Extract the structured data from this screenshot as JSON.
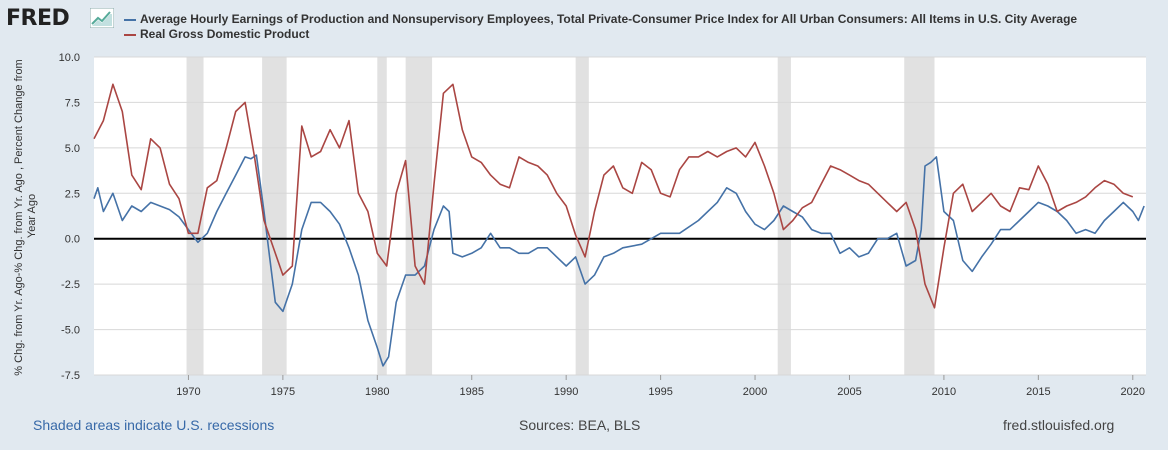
{
  "logo_text": "FRED",
  "chart_data": {
    "type": "line",
    "ylabel": "% Chg. from Yr. Ago-% Chg. from Yr. Ago , Percent Change from Year Ago",
    "xlabel": "",
    "ylim": [
      -7.5,
      10.0
    ],
    "xlim": [
      1965.0,
      2020.7
    ],
    "yticks": [
      "10.0",
      "7.5",
      "5.0",
      "2.5",
      "0.0",
      "-2.5",
      "-5.0",
      "-7.5"
    ],
    "xticks": [
      "1970",
      "1975",
      "1980",
      "1985",
      "1990",
      "1995",
      "2000",
      "2005",
      "2010",
      "2015",
      "2020"
    ],
    "recessions": [
      [
        1969.9,
        1970.8
      ],
      [
        1973.9,
        1975.2
      ],
      [
        1980.0,
        1980.5
      ],
      [
        1981.5,
        1982.9
      ],
      [
        1990.5,
        1991.2
      ],
      [
        2001.2,
        2001.9
      ],
      [
        2007.9,
        2009.5
      ]
    ],
    "series": [
      {
        "name": "Average Hourly Earnings of Production and Nonsupervisory Employees, Total Private-Consumer Price Index for All Urban Consumers: All Items in U.S. City Average",
        "color": "#4572a7",
        "x": [
          1965.0,
          1965.2,
          1965.5,
          1966.0,
          1966.5,
          1967.0,
          1967.5,
          1968.0,
          1968.5,
          1969.0,
          1969.5,
          1970.0,
          1970.5,
          1971.0,
          1971.5,
          1972.0,
          1972.5,
          1973.0,
          1973.3,
          1973.6,
          1974.0,
          1974.3,
          1974.6,
          1975.0,
          1975.5,
          1976.0,
          1976.5,
          1977.0,
          1977.5,
          1978.0,
          1978.5,
          1979.0,
          1979.5,
          1980.0,
          1980.3,
          1980.6,
          1981.0,
          1981.5,
          1982.0,
          1982.5,
          1983.0,
          1983.5,
          1983.8,
          1984.0,
          1984.5,
          1985.0,
          1985.5,
          1986.0,
          1986.5,
          1987.0,
          1987.5,
          1988.0,
          1988.5,
          1989.0,
          1989.5,
          1990.0,
          1990.5,
          1991.0,
          1991.5,
          1992.0,
          1992.5,
          1993.0,
          1994.0,
          1995.0,
          1996.0,
          1997.0,
          1998.0,
          1998.5,
          1999.0,
          1999.5,
          2000.0,
          2000.5,
          2001.0,
          2001.5,
          2002.0,
          2002.5,
          2003.0,
          2003.5,
          2004.0,
          2004.5,
          2005.0,
          2005.5,
          2006.0,
          2006.5,
          2007.0,
          2007.5,
          2008.0,
          2008.5,
          2008.8,
          2009.0,
          2009.3,
          2009.6,
          2010.0,
          2010.5,
          2011.0,
          2011.5,
          2012.0,
          2012.5,
          2013.0,
          2013.5,
          2014.0,
          2014.5,
          2015.0,
          2015.5,
          2016.0,
          2016.5,
          2017.0,
          2017.5,
          2018.0,
          2018.5,
          2019.0,
          2019.5,
          2020.0,
          2020.3,
          2020.6
        ],
        "y": [
          2.2,
          2.8,
          1.5,
          2.5,
          1.0,
          1.8,
          1.5,
          2.0,
          1.8,
          1.6,
          1.2,
          0.5,
          -0.2,
          0.3,
          1.5,
          2.5,
          3.5,
          4.5,
          4.4,
          4.6,
          1.5,
          -1.0,
          -3.5,
          -4.0,
          -2.5,
          0.5,
          2.0,
          2.0,
          1.5,
          0.8,
          -0.5,
          -2.0,
          -4.5,
          -6.0,
          -7.0,
          -6.5,
          -3.5,
          -2.0,
          -2.0,
          -1.5,
          0.5,
          1.8,
          1.5,
          -0.8,
          -1.0,
          -0.8,
          -0.5,
          0.3,
          -0.5,
          -0.5,
          -0.8,
          -0.8,
          -0.5,
          -0.5,
          -1.0,
          -1.5,
          -1.0,
          -2.5,
          -2.0,
          -1.0,
          -0.8,
          -0.5,
          -0.3,
          0.3,
          0.3,
          1.0,
          2.0,
          2.8,
          2.5,
          1.5,
          0.8,
          0.5,
          1.0,
          1.8,
          1.5,
          1.2,
          0.5,
          0.3,
          0.3,
          -0.8,
          -0.5,
          -1.0,
          -0.8,
          0.0,
          0.0,
          0.3,
          -1.5,
          -1.2,
          0.5,
          4.0,
          4.2,
          4.5,
          1.5,
          1.0,
          -1.2,
          -1.8,
          -1.0,
          -0.3,
          0.5,
          0.5,
          1.0,
          1.5,
          2.0,
          1.8,
          1.5,
          1.0,
          0.3,
          0.5,
          0.3,
          1.0,
          1.5,
          2.0,
          1.5,
          1.0,
          1.8
        ]
      },
      {
        "name": "Real Gross Domestic Product",
        "color": "#aa4643",
        "x": [
          1965.0,
          1965.5,
          1966.0,
          1966.5,
          1967.0,
          1967.5,
          1968.0,
          1968.5,
          1969.0,
          1969.5,
          1970.0,
          1970.5,
          1971.0,
          1971.5,
          1972.0,
          1972.5,
          1973.0,
          1973.5,
          1974.0,
          1974.5,
          1975.0,
          1975.5,
          1976.0,
          1976.5,
          1977.0,
          1977.5,
          1978.0,
          1978.5,
          1979.0,
          1979.5,
          1980.0,
          1980.5,
          1981.0,
          1981.5,
          1982.0,
          1982.5,
          1983.0,
          1983.5,
          1984.0,
          1984.5,
          1985.0,
          1985.5,
          1986.0,
          1986.5,
          1987.0,
          1987.5,
          1988.0,
          1988.5,
          1989.0,
          1989.5,
          1990.0,
          1990.5,
          1991.0,
          1991.5,
          1992.0,
          1992.5,
          1993.0,
          1993.5,
          1994.0,
          1994.5,
          1995.0,
          1995.5,
          1996.0,
          1996.5,
          1997.0,
          1997.5,
          1998.0,
          1998.5,
          1999.0,
          1999.5,
          2000.0,
          2000.5,
          2001.0,
          2001.5,
          2002.0,
          2002.5,
          2003.0,
          2003.5,
          2004.0,
          2004.5,
          2005.0,
          2005.5,
          2006.0,
          2006.5,
          2007.0,
          2007.5,
          2008.0,
          2008.5,
          2009.0,
          2009.5,
          2010.0,
          2010.5,
          2011.0,
          2011.5,
          2012.0,
          2012.5,
          2013.0,
          2013.5,
          2014.0,
          2014.5,
          2015.0,
          2015.5,
          2016.0,
          2016.5,
          2017.0,
          2017.5,
          2018.0,
          2018.5,
          2019.0,
          2019.5,
          2020.0
        ],
        "y": [
          5.5,
          6.5,
          8.5,
          7.0,
          3.5,
          2.7,
          5.5,
          5.0,
          3.0,
          2.2,
          0.3,
          0.3,
          2.8,
          3.2,
          5.0,
          7.0,
          7.5,
          4.5,
          1.0,
          -0.5,
          -2.0,
          -1.5,
          6.2,
          4.5,
          4.8,
          6.0,
          5.0,
          6.5,
          2.5,
          1.5,
          -0.8,
          -1.5,
          2.5,
          4.3,
          -1.5,
          -2.5,
          3.0,
          8.0,
          8.5,
          6.0,
          4.5,
          4.2,
          3.5,
          3.0,
          2.8,
          4.5,
          4.2,
          4.0,
          3.5,
          2.5,
          1.8,
          0.2,
          -1.0,
          1.5,
          3.5,
          4.0,
          2.8,
          2.5,
          4.2,
          3.8,
          2.5,
          2.3,
          3.8,
          4.5,
          4.5,
          4.8,
          4.5,
          4.8,
          5.0,
          4.5,
          5.3,
          4.0,
          2.5,
          0.5,
          1.0,
          1.7,
          2.0,
          3.0,
          4.0,
          3.8,
          3.5,
          3.2,
          3.0,
          2.5,
          2.0,
          1.5,
          2.0,
          0.5,
          -2.5,
          -3.8,
          -0.5,
          2.5,
          3.0,
          1.5,
          2.0,
          2.5,
          1.8,
          1.5,
          2.8,
          2.7,
          4.0,
          3.0,
          1.5,
          1.8,
          2.0,
          2.3,
          2.8,
          3.2,
          3.0,
          2.5,
          2.3
        ]
      }
    ]
  },
  "footer": {
    "recession_note": "Shaded areas indicate U.S. recessions",
    "sources": "Sources: BEA, BLS",
    "site": "fred.stlouisfed.org"
  }
}
